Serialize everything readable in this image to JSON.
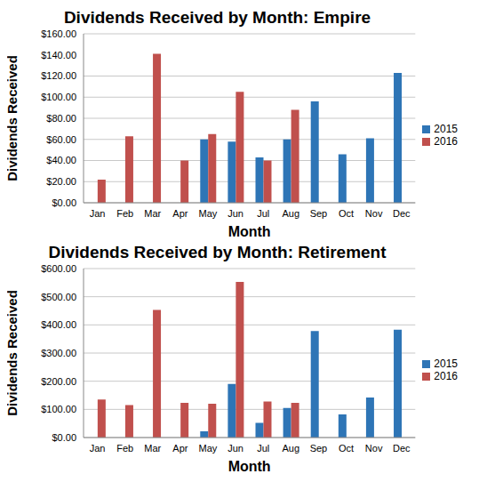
{
  "chart_data": [
    {
      "type": "bar",
      "title": "Dividends Received by Month: Empire",
      "x_label": "Month",
      "y_label": "Dividends Received",
      "categories": [
        "Jan",
        "Feb",
        "Mar",
        "Apr",
        "May",
        "Jun",
        "Jul",
        "Aug",
        "Sep",
        "Oct",
        "Nov",
        "Dec"
      ],
      "series": [
        {
          "name": "2015",
          "color": "#2e75b6",
          "values": [
            null,
            null,
            null,
            null,
            60,
            58,
            43,
            60,
            96,
            46,
            61,
            123
          ]
        },
        {
          "name": "2016",
          "color": "#c0504d",
          "values": [
            22,
            63,
            141,
            40,
            65,
            105,
            40,
            88,
            null,
            null,
            null,
            null
          ]
        }
      ],
      "ylim": [
        0,
        160
      ],
      "yticks": [
        {
          "value": 0,
          "label": "$0.00"
        },
        {
          "value": 20,
          "label": "$20.00"
        },
        {
          "value": 40,
          "label": "$40.00"
        },
        {
          "value": 60,
          "label": "$60.00"
        },
        {
          "value": 80,
          "label": "$80.00"
        },
        {
          "value": 100,
          "label": "$100.00"
        },
        {
          "value": 120,
          "label": "$120.00"
        },
        {
          "value": 140,
          "label": "$140.00"
        },
        {
          "value": 160,
          "label": "$160.00"
        }
      ],
      "grid": true,
      "legend": "right"
    },
    {
      "type": "bar",
      "title": "Dividends Received by Month: Retirement",
      "x_label": "Month",
      "y_label": "Dividends Received",
      "categories": [
        "Jan",
        "Feb",
        "Mar",
        "Apr",
        "May",
        "Jun",
        "Jul",
        "Aug",
        "Sep",
        "Oct",
        "Nov",
        "Dec"
      ],
      "series": [
        {
          "name": "2015",
          "color": "#2e75b6",
          "values": [
            null,
            null,
            null,
            null,
            22,
            190,
            52,
            105,
            378,
            82,
            142,
            383
          ]
        },
        {
          "name": "2016",
          "color": "#c0504d",
          "values": [
            135,
            115,
            453,
            123,
            120,
            553,
            128,
            123,
            null,
            null,
            null,
            null
          ]
        }
      ],
      "ylim": [
        0,
        600
      ],
      "yticks": [
        {
          "value": 0,
          "label": "$0.00"
        },
        {
          "value": 100,
          "label": "$100.00"
        },
        {
          "value": 200,
          "label": "$200.00"
        },
        {
          "value": 300,
          "label": "$300.00"
        },
        {
          "value": 400,
          "label": "$400.00"
        },
        {
          "value": 500,
          "label": "$500.00"
        },
        {
          "value": 600,
          "label": "$600.00"
        }
      ],
      "grid": true,
      "legend": "right"
    }
  ]
}
